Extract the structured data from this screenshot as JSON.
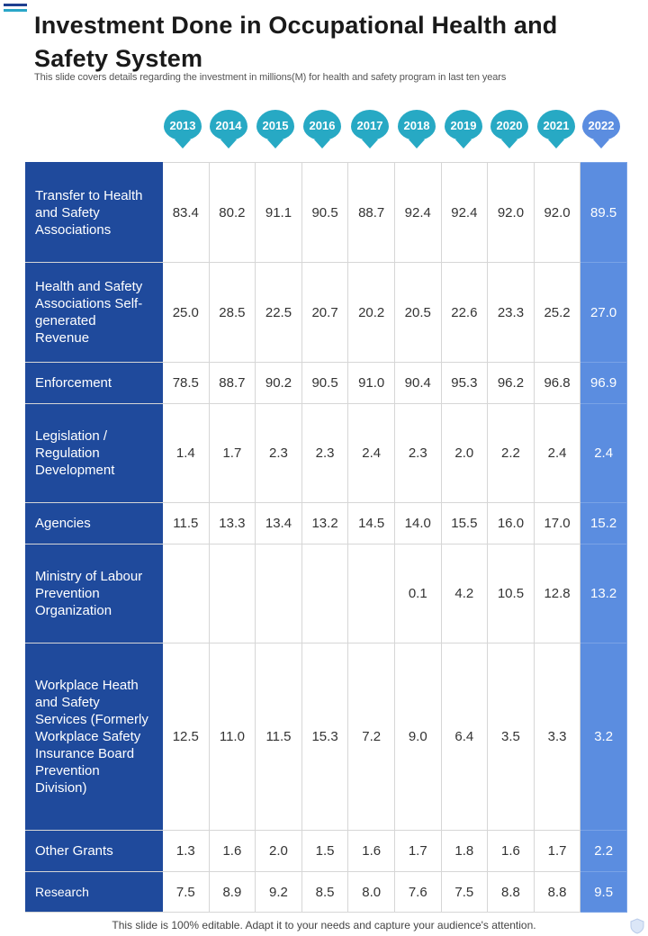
{
  "title": "Investment Done in Occupational Health and Safety System",
  "subtitle": "This slide covers details regarding the investment in millions(M) for health and safety program in last ten years",
  "years": [
    "2013",
    "2014",
    "2015",
    "2016",
    "2017",
    "2018",
    "2019",
    "2020",
    "2021",
    "2022"
  ],
  "rows": [
    {
      "label": "Transfer to Health and Safety Associations",
      "values": [
        "83.4",
        "80.2",
        "91.1",
        "90.5",
        "88.7",
        "92.4",
        "92.4",
        "92.0",
        "92.0",
        "89.5"
      ]
    },
    {
      "label": "Health and Safety Associations Self-generated Revenue",
      "values": [
        "25.0",
        "28.5",
        "22.5",
        "20.7",
        "20.2",
        "20.5",
        "22.6",
        "23.3",
        "25.2",
        "27.0"
      ]
    },
    {
      "label": "Enforcement",
      "values": [
        "78.5",
        "88.7",
        "90.2",
        "90.5",
        "91.0",
        "90.4",
        "95.3",
        "96.2",
        "96.8",
        "96.9"
      ]
    },
    {
      "label": "Legislation / Regulation Development",
      "values": [
        "1.4",
        "1.7",
        "2.3",
        "2.3",
        "2.4",
        "2.3",
        "2.0",
        "2.2",
        "2.4",
        "2.4"
      ]
    },
    {
      "label": "Agencies",
      "values": [
        "11.5",
        "13.3",
        "13.4",
        "13.2",
        "14.5",
        "14.0",
        "15.5",
        "16.0",
        "17.0",
        "15.2"
      ]
    },
    {
      "label": "Ministry of Labour Prevention Organization",
      "values": [
        "",
        "",
        "",
        "",
        "",
        "0.1",
        "4.2",
        "10.5",
        "12.8",
        "13.2"
      ]
    },
    {
      "label": "Workplace Heath and Safety Services (Formerly Workplace Safety Insurance Board Prevention Division)",
      "values": [
        "12.5",
        "11.0",
        "11.5",
        "15.3",
        "7.2",
        "9.0",
        "6.4",
        "3.5",
        "3.3",
        "3.2"
      ]
    },
    {
      "label": "Other Grants",
      "values": [
        "1.3",
        "1.6",
        "2.0",
        "1.5",
        "1.6",
        "1.7",
        "1.8",
        "1.6",
        "1.7",
        "2.2"
      ]
    },
    {
      "label": "Research",
      "values": [
        "7.5",
        "8.9",
        "9.2",
        "8.5",
        "8.0",
        "7.6",
        "7.5",
        "8.8",
        "8.8",
        "9.5"
      ]
    }
  ],
  "footer": "This slide is 100% editable. Adapt it to your needs and capture your audience's attention.",
  "colors": {
    "label_bg": "#1f4a9c",
    "badge": "#27a9c4",
    "current": "#5b8de0"
  }
}
